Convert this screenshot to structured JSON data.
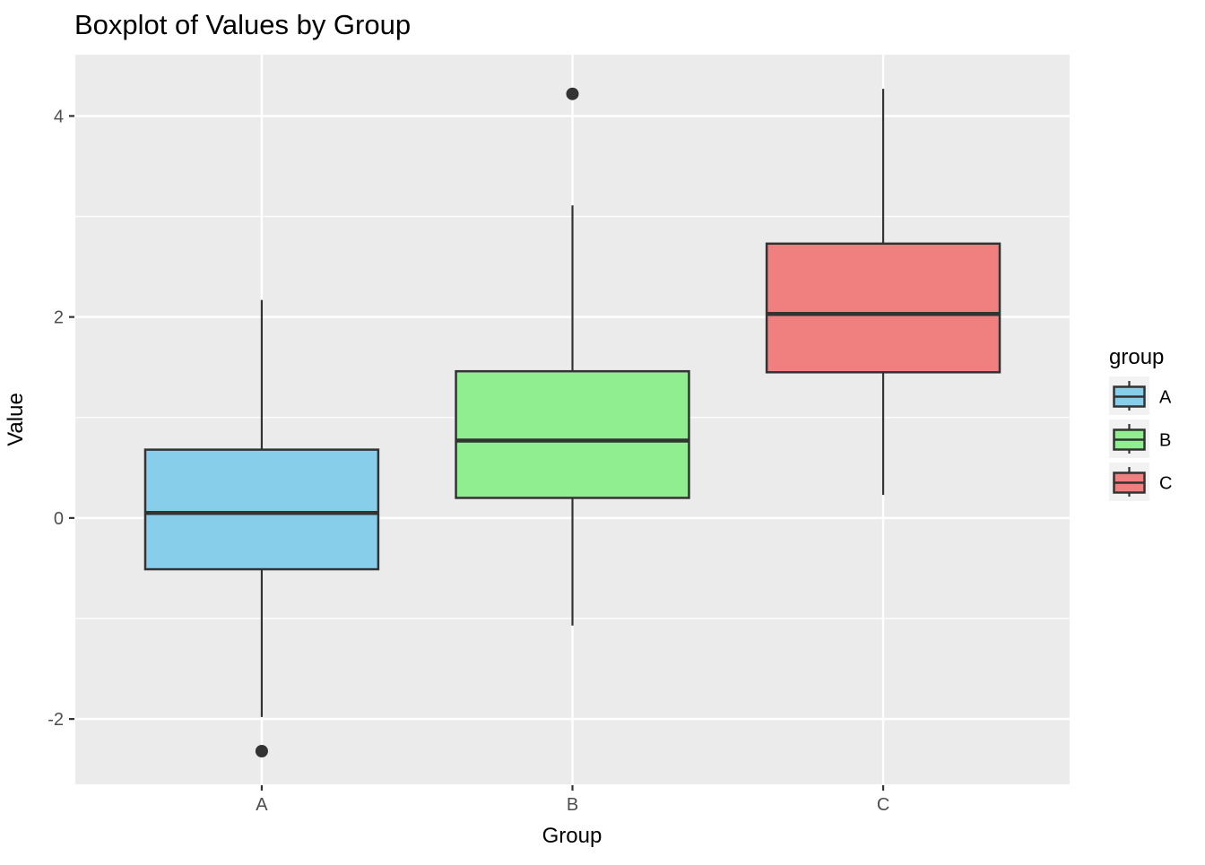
{
  "chart_data": {
    "type": "boxplot",
    "title": "Boxplot of Values by Group",
    "xlabel": "Group",
    "ylabel": "Value",
    "categories": [
      "A",
      "B",
      "C"
    ],
    "series": [
      {
        "name": "A",
        "color": "#87CEEB",
        "lower_whisker": -1.98,
        "q1": -0.51,
        "median": 0.05,
        "q3": 0.68,
        "upper_whisker": 2.17,
        "outliers": [
          -2.32
        ]
      },
      {
        "name": "B",
        "color": "#90EE90",
        "lower_whisker": -1.07,
        "q1": 0.2,
        "median": 0.77,
        "q3": 1.46,
        "upper_whisker": 3.11,
        "outliers": [
          4.22
        ]
      },
      {
        "name": "C",
        "color": "#F08080",
        "lower_whisker": 0.23,
        "q1": 1.45,
        "median": 2.03,
        "q3": 2.73,
        "upper_whisker": 4.27,
        "outliers": []
      }
    ],
    "ylim": [
      -2.65,
      4.61
    ],
    "y_ticks": [
      -2,
      0,
      2,
      4
    ],
    "y_tick_labels": [
      "-2",
      "0",
      "2",
      "4"
    ],
    "y_minor_ticks": [
      -1,
      1,
      3
    ],
    "grid": true,
    "box_width_fraction": 0.75,
    "legend": {
      "title": "group",
      "position": "right",
      "entries": [
        {
          "label": "A",
          "color": "#87CEEB"
        },
        {
          "label": "B",
          "color": "#90EE90"
        },
        {
          "label": "C",
          "color": "#F08080"
        }
      ]
    },
    "colors": {
      "panel_bg": "#EBEBEB",
      "grid": "#FFFFFF",
      "box_stroke": "#333333",
      "median_stroke": "#333333",
      "whisker_stroke": "#333333",
      "outlier_fill": "#333333",
      "tick_mark": "#333333",
      "tick_label": "#4D4D4D",
      "text": "#000000",
      "legend_key_bg": "#F2F2F2"
    }
  }
}
